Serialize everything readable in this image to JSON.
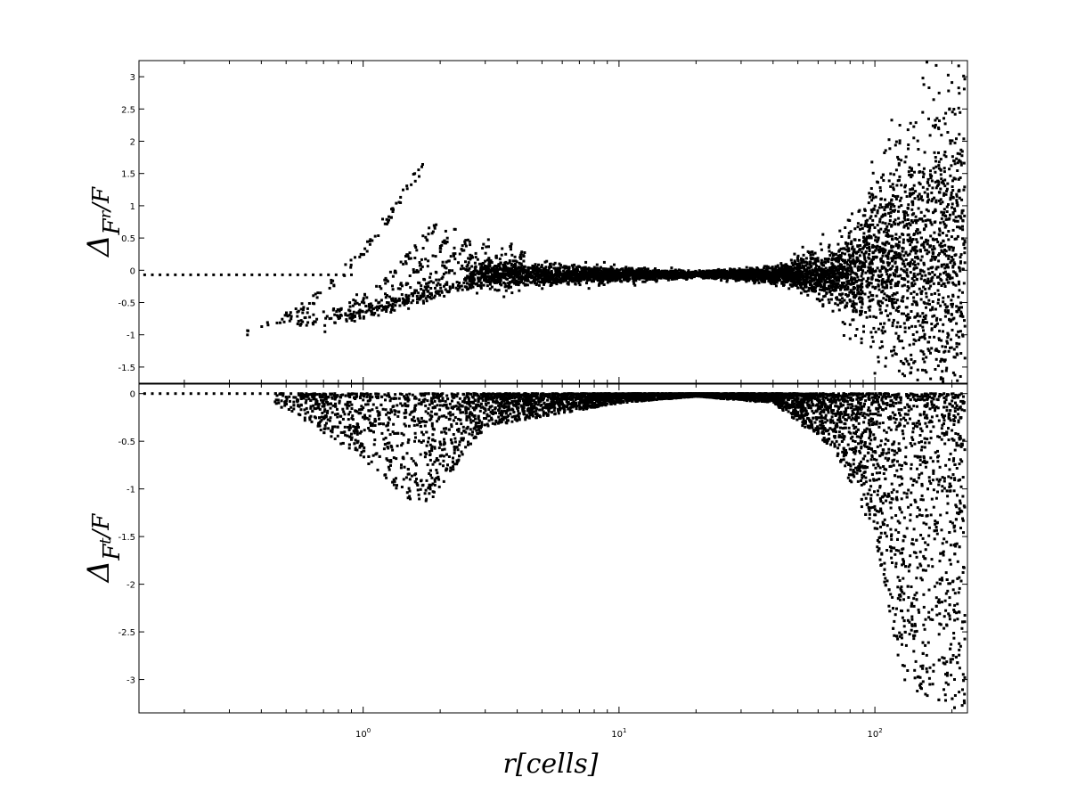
{
  "chart_data": [
    {
      "type": "scatter",
      "panel": "top",
      "ylabel": {
        "main": "Δ",
        "sub": "F",
        "subsub": "r",
        "tail": "/F"
      },
      "xscale": "log",
      "xlim": [
        0.133,
        230
      ],
      "ylim": [
        -1.75,
        3.25
      ],
      "yticks": [
        "3",
        "2.5",
        "2",
        "1.5",
        "1",
        "0.5",
        "0",
        "-0.5",
        "-1",
        "-1.5"
      ],
      "ytick_values": [
        3,
        2.5,
        2,
        1.5,
        1,
        0.5,
        0,
        -0.5,
        -1,
        -1.5
      ],
      "grid": false,
      "marker_color": "#000000",
      "description_points": {
        "flat_line": {
          "x_range": [
            0.14,
            0.9
          ],
          "y": -0.07
        },
        "branches": [
          {
            "x_from": 0.35,
            "x_to": 1.72,
            "y_from": -0.92,
            "y_to": 1.68
          },
          {
            "x_from": 0.55,
            "x_to": 1.95,
            "y_from": -0.82,
            "y_to": 0.72
          },
          {
            "x_from": 0.7,
            "x_to": 2.3,
            "y_from": -0.78,
            "y_to": 0.65
          },
          {
            "x_from": 0.85,
            "x_to": 2.7,
            "y_from": -0.72,
            "y_to": 0.52
          },
          {
            "x_from": 1.05,
            "x_to": 3.2,
            "y_from": -0.62,
            "y_to": 0.5
          },
          {
            "x_from": 1.3,
            "x_to": 3.8,
            "y_from": -0.5,
            "y_to": 0.38
          },
          {
            "x_from": 1.6,
            "x_to": 4.4,
            "y_from": -0.42,
            "y_to": 0.28
          }
        ],
        "cloud": [
          {
            "x": 3,
            "spread": 0.2
          },
          {
            "x": 10,
            "spread": 0.1
          },
          {
            "x": 20,
            "spread": 0.04
          },
          {
            "x": 40,
            "spread": 0.1
          },
          {
            "x": 70,
            "spread": 0.35
          },
          {
            "x": 100,
            "spread": 1.1
          },
          {
            "x": 140,
            "spread": 1.8
          },
          {
            "x": 200,
            "spread": 2.4
          }
        ]
      }
    },
    {
      "type": "scatter",
      "panel": "bottom",
      "ylabel": {
        "main": "Δ",
        "sub": "F",
        "subsub": "t",
        "tail": "/F"
      },
      "xlabel": "r[cells]",
      "xscale": "log",
      "xlim": [
        0.133,
        230
      ],
      "ylim": [
        -3.35,
        0.1
      ],
      "yticks": [
        "0",
        "-0.5",
        "-1",
        "-1.5",
        "-2",
        "-2.5",
        "-3"
      ],
      "ytick_values": [
        0,
        -0.5,
        -1,
        -1.5,
        -2,
        -2.5,
        -3
      ],
      "xticks": [
        {
          "base": "10",
          "exp": "0",
          "value": 1
        },
        {
          "base": "10",
          "exp": "1",
          "value": 10
        },
        {
          "base": "10",
          "exp": "2",
          "value": 100
        }
      ],
      "grid": false,
      "marker_color": "#000000",
      "description_points": {
        "flat_line": {
          "x_range": [
            0.14,
            0.6
          ],
          "y": 0
        },
        "cloud": [
          {
            "x": 0.5,
            "depth": 0.15
          },
          {
            "x": 1.0,
            "depth": 0.7
          },
          {
            "x": 1.7,
            "depth": 1.25
          },
          {
            "x": 3,
            "depth": 0.35
          },
          {
            "x": 10,
            "depth": 0.1
          },
          {
            "x": 20,
            "depth": 0.03
          },
          {
            "x": 40,
            "depth": 0.1
          },
          {
            "x": 70,
            "depth": 0.6
          },
          {
            "x": 100,
            "depth": 1.5
          },
          {
            "x": 130,
            "depth": 3.1
          },
          {
            "x": 200,
            "depth": 3.3
          }
        ]
      }
    }
  ]
}
